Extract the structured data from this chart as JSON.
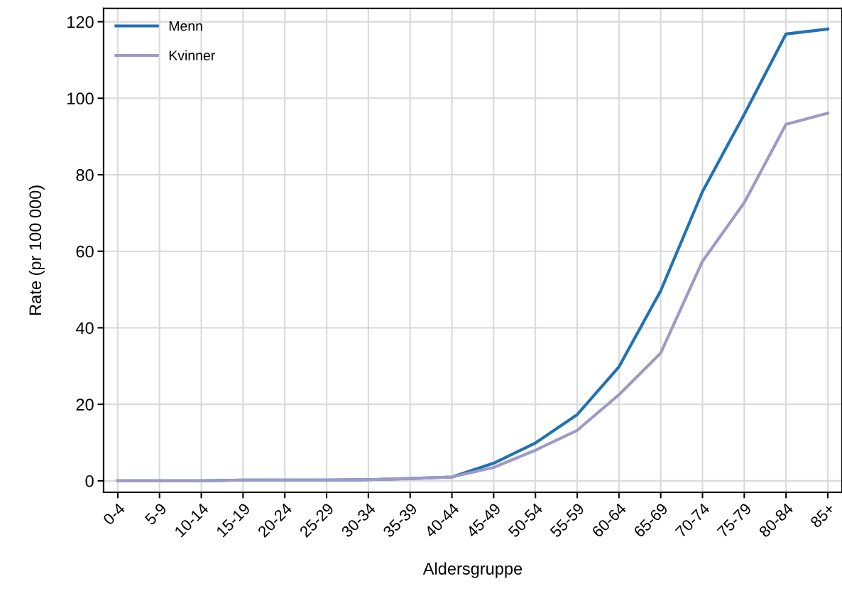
{
  "chart_data": {
    "type": "line",
    "xlabel": "Aldersgruppe",
    "ylabel": "Rate (pr 100 000)",
    "categories": [
      "0-4",
      "5-9",
      "10-14",
      "15-19",
      "20-24",
      "25-29",
      "30-34",
      "35-39",
      "40-44",
      "45-49",
      "50-54",
      "55-59",
      "60-64",
      "65-69",
      "70-74",
      "75-79",
      "80-84",
      "85+"
    ],
    "series": [
      {
        "name": "Menn",
        "color": "#2171b5",
        "values": [
          0,
          0,
          0,
          0.2,
          0.2,
          0.2,
          0.3,
          0.6,
          1.0,
          4.6,
          9.9,
          17.3,
          29.8,
          49.7,
          75.6,
          95.8,
          116.8,
          118.1
        ]
      },
      {
        "name": "Kvinner",
        "color": "#9e9ac8",
        "values": [
          0,
          0,
          0,
          0.2,
          0.2,
          0.2,
          0.3,
          0.6,
          1.0,
          3.5,
          8.0,
          13.2,
          22.5,
          33.4,
          57.4,
          72.7,
          93.2,
          96.1
        ]
      }
    ],
    "ylim": [
      -3,
      123.5
    ],
    "yticks": [
      0,
      20,
      40,
      60,
      80,
      100,
      120
    ],
    "grid": true,
    "legend": "top left",
    "marker": "none",
    "line_style": "solid"
  }
}
